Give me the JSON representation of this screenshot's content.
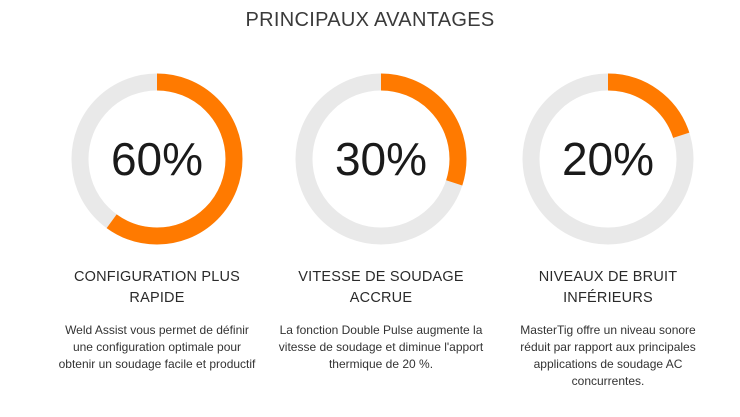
{
  "section": {
    "title": "PRINCIPAUX AVANTAGES"
  },
  "colors": {
    "accent": "#ff7a00",
    "track": "#e9e9e9"
  },
  "benefits": [
    {
      "percent_text": "60%",
      "value": 60,
      "heading_line1": "CONFIGURATION PLUS",
      "heading_line2": "RAPIDE",
      "description": "Weld Assist vous permet de définir une configuration optimale pour obtenir un soudage facile et productif"
    },
    {
      "percent_text": "30%",
      "value": 30,
      "heading_line1": "VITESSE DE SOUDAGE",
      "heading_line2": "ACCRUE",
      "description": "La fonction Double Pulse augmente la vitesse de soudage et diminue l'apport thermique de 20 %."
    },
    {
      "percent_text": "20%",
      "value": 20,
      "heading_line1": "NIVEAUX DE BRUIT",
      "heading_line2": "INFÉRIEURS",
      "description": "MasterTig offre un niveau sonore réduit par rapport aux principales applications de soudage AC concurrentes."
    }
  ]
}
